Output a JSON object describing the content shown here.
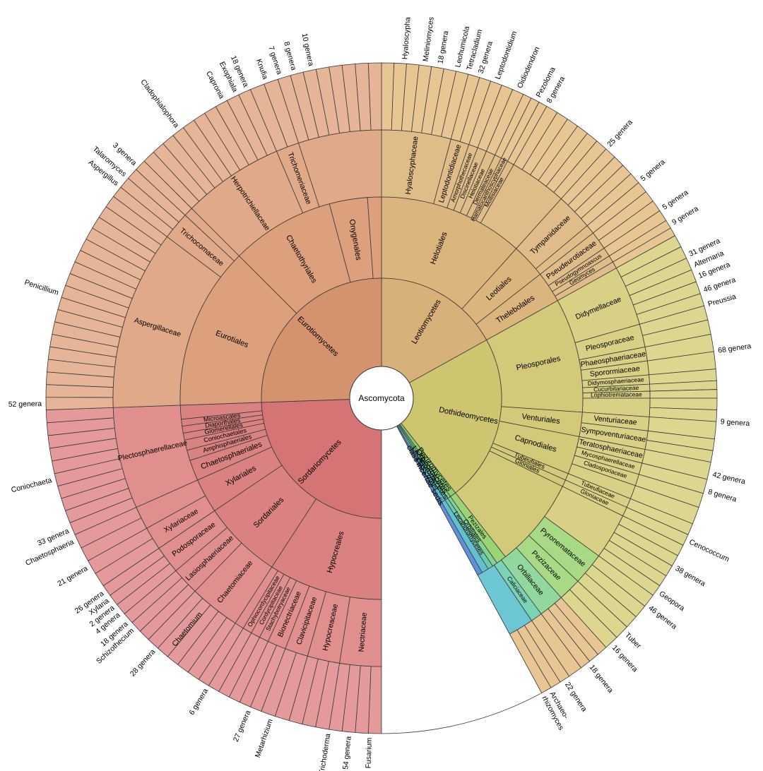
{
  "root": {
    "label": "Ascomycota"
  },
  "classes": [
    {
      "key": "leo",
      "label": "Leotiomycetes",
      "start": 0,
      "end": 61,
      "color": "#d8b07a"
    },
    {
      "key": "doth",
      "label": "Dothideomycetes",
      "start": 61,
      "end": 142,
      "color": "#cdc56f"
    },
    {
      "key": "pez",
      "label": "Pezizomycetes",
      "start": 142,
      "end": 145,
      "color": "#8fce6a"
    },
    {
      "key": "orb",
      "label": "Orbiliomycetes",
      "start": 145,
      "end": 146.5,
      "color": "#78cc88"
    },
    {
      "key": "lec",
      "label": "Lecanoromycetes",
      "start": 146.5,
      "end": 148,
      "color": "#62c4a8"
    },
    {
      "key": "oth",
      "label": "class other",
      "start": 148,
      "end": 150,
      "color": "#58b8c8"
    },
    {
      "key": "ince",
      "label": "class incertae sedis",
      "start": 150,
      "end": 151.5,
      "color": "#5a8ad6"
    },
    {
      "key": "blank",
      "label": "",
      "start": 151.5,
      "end": 180,
      "color": "#ffffff"
    },
    {
      "key": "sord",
      "label": "Sordariomycetes",
      "start": 180,
      "end": 268,
      "color": "#d47474"
    },
    {
      "key": "euro",
      "label": "Eurotiomycetes",
      "start": 268,
      "end": 360,
      "color": "#d4926f"
    }
  ],
  "orders": [
    {
      "label": "Helotiales",
      "start": 0,
      "end": 42,
      "color": "#dcb47d"
    },
    {
      "label": "Leotiales",
      "start": 42,
      "end": 52,
      "color": "#dcb47d"
    },
    {
      "label": "Thelebolales",
      "start": 52,
      "end": 61,
      "color": "#dcb47d"
    },
    {
      "label": "Pleosporales",
      "start": 61,
      "end": 94,
      "color": "#d2ca78"
    },
    {
      "label": "Venturiales",
      "start": 94,
      "end": 101,
      "color": "#d2ca78"
    },
    {
      "label": "Capnodiales",
      "start": 101,
      "end": 112,
      "color": "#d2ca78"
    },
    {
      "label": "Tubeufiales",
      "start": 112,
      "end": 114,
      "color": "#d2ca78"
    },
    {
      "label": "Gloniales",
      "start": 114,
      "end": 116,
      "color": "#d2ca78"
    },
    {
      "label": "",
      "start": 116,
      "end": 142,
      "color": "#d2ca78"
    },
    {
      "label": "Pezizales",
      "start": 142,
      "end": 145,
      "color": "#9ad476"
    },
    {
      "label": "Orbiliales",
      "start": 145,
      "end": 146.5,
      "color": "#82d292"
    },
    {
      "label": "Lecanoromycetes",
      "start": 146.5,
      "end": 148,
      "color": "#6ccab0"
    },
    {
      "label": "",
      "start": 148,
      "end": 150,
      "color": "#62c0d0"
    },
    {
      "label": "",
      "start": 150,
      "end": 151.5,
      "color": "#6090da"
    },
    {
      "label": "Hypocreales",
      "start": 180,
      "end": 213,
      "color": "#da8282"
    },
    {
      "label": "Sordariales",
      "start": 213,
      "end": 236,
      "color": "#da8282"
    },
    {
      "label": "Xylariales",
      "start": 236,
      "end": 246,
      "color": "#da8282"
    },
    {
      "label": "Chaetosphaeriales",
      "start": 246,
      "end": 252,
      "color": "#da8282"
    },
    {
      "label": "Amphisphaeriales",
      "start": 252,
      "end": 255,
      "color": "#da8282"
    },
    {
      "label": "Coniochaetales",
      "start": 255,
      "end": 258,
      "color": "#da8282"
    },
    {
      "label": "Glomerellales",
      "start": 258,
      "end": 260,
      "color": "#da8282"
    },
    {
      "label": "Diaporthales",
      "start": 260,
      "end": 262,
      "color": "#da8282"
    },
    {
      "label": "Microascales",
      "start": 262,
      "end": 264,
      "color": "#da8282"
    },
    {
      "label": "",
      "start": 264,
      "end": 268,
      "color": "#da8282"
    },
    {
      "label": "Eurotiales",
      "start": 268,
      "end": 315,
      "color": "#dca07c"
    },
    {
      "label": "Chaetothyriales",
      "start": 315,
      "end": 345,
      "color": "#dca07c"
    },
    {
      "label": "Onygenales",
      "start": 345,
      "end": 356,
      "color": "#dca07c"
    },
    {
      "label": "",
      "start": 356,
      "end": 360,
      "color": "#dca07c"
    }
  ],
  "families": [
    {
      "label": "Hyaloscyphaceae",
      "start": 0,
      "end": 15,
      "color": "#e0bc88"
    },
    {
      "label": "Leptodontidiaceae",
      "start": 15,
      "end": 19,
      "color": "#e0bc88"
    },
    {
      "label": "Amorphothecaceae",
      "start": 19,
      "end": 21,
      "color": "#e0bc88"
    },
    {
      "label": "Discinellaceae",
      "start": 21,
      "end": 23,
      "color": "#e0bc88"
    },
    {
      "label": "Helotiaceae",
      "start": 23,
      "end": 25,
      "color": "#e0bc88"
    },
    {
      "label": "Dermateaceae",
      "start": 25,
      "end": 26.5,
      "color": "#e0bc88"
    },
    {
      "label": "Hamatocanthoscyphaceae",
      "start": 26.5,
      "end": 28,
      "color": "#e0bc88"
    },
    {
      "label": "Mollisiaceae",
      "start": 28,
      "end": 29.5,
      "color": "#e0bc88"
    },
    {
      "label": "",
      "start": 29.5,
      "end": 42,
      "color": "#e0bc88"
    },
    {
      "label": "Tympanidaceae",
      "start": 42,
      "end": 50,
      "color": "#e0bc88"
    },
    {
      "label": "",
      "start": 50,
      "end": 52,
      "color": "#e0bc88"
    },
    {
      "label": "Pseudeurotiaceae",
      "start": 52,
      "end": 56,
      "color": "#e0bc88"
    },
    {
      "label": "Pseudogymnoascus",
      "start": 56,
      "end": 58,
      "color": "#e0bc88"
    },
    {
      "label": "Geomyces",
      "start": 58,
      "end": 59.5,
      "color": "#e0bc88"
    },
    {
      "label": "",
      "start": 59.5,
      "end": 61,
      "color": "#e0bc88"
    },
    {
      "label": "Didymellaceae",
      "start": 61,
      "end": 74,
      "color": "#d8d084"
    },
    {
      "label": "Pleosporaceae",
      "start": 74,
      "end": 79,
      "color": "#d8d084"
    },
    {
      "label": "Phaeosphaeriaceae",
      "start": 79,
      "end": 82,
      "color": "#d8d084"
    },
    {
      "label": "Sporormiaceae",
      "start": 82,
      "end": 85,
      "color": "#d8d084"
    },
    {
      "label": "Didymosphaeriaceae",
      "start": 85,
      "end": 87,
      "color": "#d8d084"
    },
    {
      "label": "Cucurbitariaceae",
      "start": 87,
      "end": 88.5,
      "color": "#d8d084"
    },
    {
      "label": "Lophiotremataceae",
      "start": 88.5,
      "end": 90,
      "color": "#d8d084"
    },
    {
      "label": "",
      "start": 90,
      "end": 94,
      "color": "#d8d084"
    },
    {
      "label": "Venturiaceae",
      "start": 94,
      "end": 97,
      "color": "#d8d084"
    },
    {
      "label": "Sympoventuriaceae",
      "start": 97,
      "end": 101,
      "color": "#d8d084"
    },
    {
      "label": "Teratosphaeriaceae",
      "start": 101,
      "end": 104,
      "color": "#d8d084"
    },
    {
      "label": "Mycosphaerellaceae",
      "start": 104,
      "end": 106.5,
      "color": "#d8d084"
    },
    {
      "label": "Cladosporiaceae",
      "start": 106.5,
      "end": 109,
      "color": "#d8d084"
    },
    {
      "label": "",
      "start": 109,
      "end": 112,
      "color": "#d8d084"
    },
    {
      "label": "Tubeufiaceae",
      "start": 112,
      "end": 114,
      "color": "#d8d084"
    },
    {
      "label": "Gloniaceae",
      "start": 114,
      "end": 116,
      "color": "#d8d084"
    },
    {
      "label": "",
      "start": 116,
      "end": 126,
      "color": "#d8d084"
    },
    {
      "label": "Pyronemataceae",
      "start": 126,
      "end": 133,
      "color": "#a8da86"
    },
    {
      "label": "Pezizaceae",
      "start": 133,
      "end": 138,
      "color": "#a8da86"
    },
    {
      "label": "Orbiliaceae",
      "start": 138,
      "end": 143.5,
      "color": "#92d89e"
    },
    {
      "label": "Caliciaceae",
      "start": 143.5,
      "end": 146,
      "color": "#7cd2b4"
    },
    {
      "label": "",
      "start": 146,
      "end": 151.5,
      "color": "#6cc6d4"
    },
    {
      "label": "Nectriaceae",
      "start": 180,
      "end": 189,
      "color": "#e08e8e"
    },
    {
      "label": "Hypocreaceae",
      "start": 189,
      "end": 196,
      "color": "#e08e8e"
    },
    {
      "label": "Clavicipitaceae",
      "start": 196,
      "end": 201,
      "color": "#e08e8e"
    },
    {
      "label": "Bionectriaceae",
      "start": 201,
      "end": 205,
      "color": "#e08e8e"
    },
    {
      "label": "Stachybotryaceae",
      "start": 205,
      "end": 207,
      "color": "#e08e8e"
    },
    {
      "label": "Cordycipitaceae",
      "start": 207,
      "end": 209,
      "color": "#e08e8e"
    },
    {
      "label": "Ophiocordycipitaceae",
      "start": 209,
      "end": 211,
      "color": "#e08e8e"
    },
    {
      "label": "",
      "start": 211,
      "end": 213,
      "color": "#e08e8e"
    },
    {
      "label": "Chaetomiaceae",
      "start": 213,
      "end": 224,
      "color": "#e08e8e"
    },
    {
      "label": "Lasiosphaeriaceae",
      "start": 224,
      "end": 230,
      "color": "#e08e8e"
    },
    {
      "label": "Podosporaceae",
      "start": 230,
      "end": 236,
      "color": "#e08e8e"
    },
    {
      "label": "Xylariaceae",
      "start": 236,
      "end": 241,
      "color": "#e08e8e"
    },
    {
      "label": "",
      "start": 241,
      "end": 246,
      "color": "#e08e8e"
    },
    {
      "label": "Plectosphaerellaceae",
      "start": 246,
      "end": 268,
      "color": "#e08e8e"
    },
    {
      "label": "Aspergillaceae",
      "start": 268,
      "end": 307,
      "color": "#e0aa88"
    },
    {
      "label": "Trichocomaceae",
      "start": 307,
      "end": 313,
      "color": "#e0aa88"
    },
    {
      "label": "",
      "start": 313,
      "end": 315,
      "color": "#e0aa88"
    },
    {
      "label": "Herpotrichiellaceae",
      "start": 315,
      "end": 337,
      "color": "#e0aa88"
    },
    {
      "label": "Trichomeriaceae",
      "start": 337,
      "end": 342,
      "color": "#e0aa88"
    },
    {
      "label": "",
      "start": 342,
      "end": 360,
      "color": "#e0aa88"
    }
  ],
  "genus_colors": {
    "leo": "#e8c694",
    "doth": "#dcd68e",
    "pez": "#b4e096",
    "orb": "#a0dcac",
    "lec": "#8ad8c4",
    "oth": "#78cce0",
    "ince": "#7090e0",
    "sord": "#e49a9a",
    "euro": "#e6b496"
  },
  "outer_labels": [
    {
      "text": "Hyaloscypha",
      "angle": 4
    },
    {
      "text": "Meliniomyces",
      "angle": 7.5
    },
    {
      "text": "18 genera",
      "angle": 10
    },
    {
      "text": "Leohumicola",
      "angle": 13
    },
    {
      "text": "Tetracladium",
      "angle": 15
    },
    {
      "text": "32 genera",
      "angle": 17
    },
    {
      "text": "Leptodontidium",
      "angle": 20
    },
    {
      "text": "Oidiodendron",
      "angle": 24
    },
    {
      "text": "Pezoloma",
      "angle": 27.5
    },
    {
      "text": "8 genera",
      "angle": 29.5
    },
    {
      "text": "25 genera",
      "angle": 42
    },
    {
      "text": "5 genera",
      "angle": 50
    },
    {
      "text": "5 genera",
      "angle": 56
    },
    {
      "text": "9 genera",
      "angle": 59
    },
    {
      "text": "31 genera",
      "angle": 65
    },
    {
      "text": "Alternaria",
      "angle": 67
    },
    {
      "text": "16 genera",
      "angle": 69
    },
    {
      "text": "46 genera",
      "angle": 71.5
    },
    {
      "text": "Preussia",
      "angle": 74
    },
    {
      "text": "68 genera",
      "angle": 82
    },
    {
      "text": "9 genera",
      "angle": 94
    },
    {
      "text": "42 genera",
      "angle": 103
    },
    {
      "text": "8 genera",
      "angle": 106
    },
    {
      "text": "Cenococcum",
      "angle": 115
    },
    {
      "text": "38 genera",
      "angle": 120
    },
    {
      "text": "Geopora",
      "angle": 125
    },
    {
      "text": "46 genera",
      "angle": 128
    },
    {
      "text": "Tuber",
      "angle": 134
    },
    {
      "text": "16 genera",
      "angle": 137
    },
    {
      "text": "18 genera",
      "angle": 142
    },
    {
      "text": "22 genera",
      "angle": 147
    },
    {
      "text": "Archaeo-",
      "angle": 150
    },
    {
      "text": "rhizomyces",
      "angle": 151.5
    },
    {
      "text": "Fusarium",
      "angle": 182
    },
    {
      "text": "54 genera",
      "angle": 185.5
    },
    {
      "text": "Trichoderma",
      "angle": 189
    },
    {
      "text": "Metarhizium",
      "angle": 199
    },
    {
      "text": "27 genera",
      "angle": 203
    },
    {
      "text": "6 genera",
      "angle": 211
    },
    {
      "text": "28 genera",
      "angle": 222
    },
    {
      "text": "Schizothecium",
      "angle": 227
    },
    {
      "text": "18 genera",
      "angle": 228.5
    },
    {
      "text": "4 genera",
      "angle": 230.5
    },
    {
      "text": "2 genera",
      "angle": 232
    },
    {
      "text": "Xylaria",
      "angle": 233.5
    },
    {
      "text": "26 genera",
      "angle": 235
    },
    {
      "text": "21 genera",
      "angle": 240
    },
    {
      "text": "Chaetosphaeria",
      "angle": 245
    },
    {
      "text": "33 genera",
      "angle": 247
    },
    {
      "text": "Coniochaeta",
      "angle": 256
    },
    {
      "text": "52 genera",
      "angle": 269
    },
    {
      "text": "Penicillium",
      "angle": 288
    },
    {
      "text": "Aspergillus",
      "angle": 309
    },
    {
      "text": "Talaromyces",
      "angle": 311
    },
    {
      "text": "3 genera",
      "angle": 313.5
    },
    {
      "text": "Cladophialophora",
      "angle": 323
    },
    {
      "text": "Capronia",
      "angle": 332
    },
    {
      "text": "Exophiala",
      "angle": 334.5
    },
    {
      "text": "18 genera",
      "angle": 336.5
    },
    {
      "text": "Knufia",
      "angle": 340
    },
    {
      "text": "7 genera",
      "angle": 342.5
    },
    {
      "text": "8 genera",
      "angle": 345
    },
    {
      "text": "10 genera",
      "angle": 348
    }
  ],
  "inner_label_genus": [
    {
      "text": "Chaetomium",
      "angle": 220
    }
  ]
}
